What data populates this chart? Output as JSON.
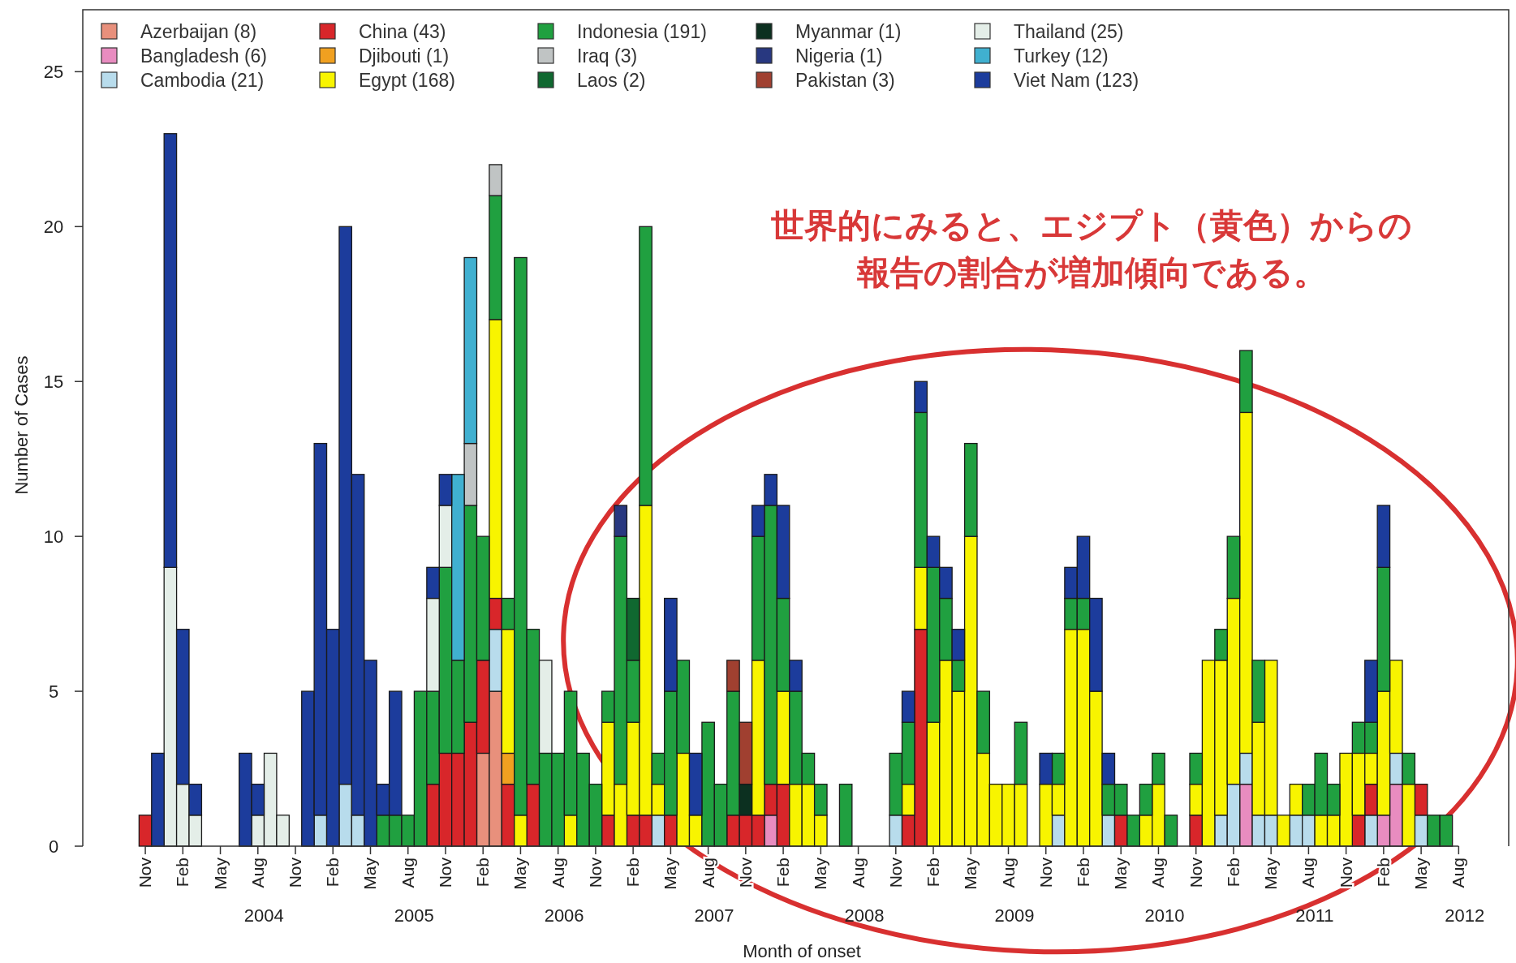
{
  "chart_data": {
    "type": "bar",
    "stacked": true,
    "xlabel": "Month of onset",
    "ylabel": "Number of Cases",
    "legend": "top",
    "xlim": [
      "2003-06",
      "2012-12"
    ],
    "ylim": [
      0,
      27
    ],
    "yticks": [
      0,
      5,
      10,
      15,
      20,
      25
    ],
    "xticks": [
      {
        "value": "2003-11",
        "label": "Nov"
      },
      {
        "value": "2004-02",
        "label": "Feb"
      },
      {
        "value": "2004-05",
        "label": "May"
      },
      {
        "value": "2004-08",
        "label": "Aug"
      },
      {
        "value": "2004-11",
        "label": "Nov"
      },
      {
        "value": "2005-02",
        "label": "Feb"
      },
      {
        "value": "2005-05",
        "label": "May"
      },
      {
        "value": "2005-08",
        "label": "Aug"
      },
      {
        "value": "2005-11",
        "label": "Nov"
      },
      {
        "value": "2006-02",
        "label": "Feb"
      },
      {
        "value": "2006-05",
        "label": "May"
      },
      {
        "value": "2006-08",
        "label": "Aug"
      },
      {
        "value": "2006-11",
        "label": "Nov"
      },
      {
        "value": "2007-02",
        "label": "Feb"
      },
      {
        "value": "2007-05",
        "label": "May"
      },
      {
        "value": "2007-08",
        "label": "Aug"
      },
      {
        "value": "2007-11",
        "label": "Nov"
      },
      {
        "value": "2008-02",
        "label": "Feb"
      },
      {
        "value": "2008-05",
        "label": "May"
      },
      {
        "value": "2008-08",
        "label": "Aug"
      },
      {
        "value": "2008-11",
        "label": "Nov"
      },
      {
        "value": "2009-02",
        "label": "Feb"
      },
      {
        "value": "2009-05",
        "label": "May"
      },
      {
        "value": "2009-08",
        "label": "Aug"
      },
      {
        "value": "2009-11",
        "label": "Nov"
      },
      {
        "value": "2010-02",
        "label": "Feb"
      },
      {
        "value": "2010-05",
        "label": "May"
      },
      {
        "value": "2010-08",
        "label": "Aug"
      },
      {
        "value": "2010-11",
        "label": "Nov"
      },
      {
        "value": "2011-02",
        "label": "Feb"
      },
      {
        "value": "2011-05",
        "label": "May"
      },
      {
        "value": "2011-08",
        "label": "Aug"
      },
      {
        "value": "2011-11",
        "label": "Nov"
      },
      {
        "value": "2012-02",
        "label": "Feb"
      },
      {
        "value": "2012-05",
        "label": "May"
      },
      {
        "value": "2012-08",
        "label": "Aug"
      }
    ],
    "x2lim": [
      "2003-06",
      "2012-12"
    ],
    "x2ticks": [
      {
        "value": "2004-08-16",
        "label": "2004"
      },
      {
        "value": "2005-08-16",
        "label": "2005"
      },
      {
        "value": "2006-08-16",
        "label": "2006"
      },
      {
        "value": "2007-08-16",
        "label": "2007"
      },
      {
        "value": "2008-08-16",
        "label": "2008"
      },
      {
        "value": "2009-08-16",
        "label": "2009"
      },
      {
        "value": "2010-08-16",
        "label": "2010"
      },
      {
        "value": "2011-08-16",
        "label": "2011"
      },
      {
        "value": "2012-08-16",
        "label": "2012"
      }
    ],
    "annotations": [
      "世界的にみると、エジプト（黄色）からの報告の割合が増加傾向である。"
    ],
    "x": [
      "2003-11",
      "2003-12",
      "2004-01",
      "2004-02",
      "2004-03",
      "2004-04",
      "2004-05",
      "2004-06",
      "2004-07",
      "2004-08",
      "2004-09",
      "2004-10",
      "2004-11",
      "2004-12",
      "2005-01",
      "2005-02",
      "2005-03",
      "2005-04",
      "2005-05",
      "2005-06",
      "2005-07",
      "2005-08",
      "2005-09",
      "2005-10",
      "2005-11",
      "2005-12",
      "2006-01",
      "2006-02",
      "2006-03",
      "2006-04",
      "2006-05",
      "2006-06",
      "2006-07",
      "2006-08",
      "2006-09",
      "2006-10",
      "2006-11",
      "2006-12",
      "2007-01",
      "2007-02",
      "2007-03",
      "2007-04",
      "2007-05",
      "2007-06",
      "2007-07",
      "2007-08",
      "2007-09",
      "2007-10",
      "2007-11",
      "2007-12",
      "2008-01",
      "2008-02",
      "2008-03",
      "2008-04",
      "2008-05",
      "2008-06",
      "2008-07",
      "2008-08",
      "2008-09",
      "2008-10",
      "2008-11",
      "2008-12",
      "2009-01",
      "2009-02",
      "2009-03",
      "2009-04",
      "2009-05",
      "2009-06",
      "2009-07",
      "2009-08",
      "2009-09",
      "2009-10",
      "2009-11",
      "2009-12",
      "2010-01",
      "2010-02",
      "2010-03",
      "2010-04",
      "2010-05",
      "2010-06",
      "2010-07",
      "2010-08",
      "2010-09",
      "2010-10",
      "2010-11",
      "2010-12",
      "2011-01",
      "2011-02",
      "2011-03",
      "2011-04",
      "2011-05",
      "2011-06",
      "2011-07",
      "2011-08",
      "2011-09",
      "2011-10",
      "2011-11",
      "2011-12",
      "2012-01",
      "2012-02",
      "2012-03",
      "2012-04",
      "2012-05",
      "2012-06",
      "2012-07"
    ],
    "series": [
      {
        "name": "Azerbaijan (8)",
        "color": "#e8907c",
        "values": [
          0,
          0,
          0,
          0,
          0,
          0,
          0,
          0,
          0,
          0,
          0,
          0,
          0,
          0,
          0,
          0,
          0,
          0,
          0,
          0,
          0,
          0,
          0,
          0,
          0,
          0,
          0,
          3,
          5,
          0,
          0,
          0,
          0,
          0,
          0,
          0,
          0,
          0,
          0,
          0,
          0,
          0,
          0,
          0,
          0,
          0,
          0,
          0,
          0,
          0,
          0,
          0,
          0,
          0,
          0,
          0,
          0,
          0,
          0,
          0,
          0,
          0,
          0,
          0,
          0,
          0,
          0,
          0,
          0,
          0,
          0,
          0,
          0,
          0,
          0,
          0,
          0,
          0,
          0,
          0,
          0,
          0,
          0,
          0,
          0,
          0,
          0,
          0,
          0,
          0,
          0,
          0,
          0,
          0,
          0,
          0,
          0,
          0,
          0,
          0,
          0,
          0,
          0,
          0,
          0
        ]
      },
      {
        "name": "Bangladesh (6)",
        "color": "#e88cc0",
        "values": [
          0,
          0,
          0,
          0,
          0,
          0,
          0,
          0,
          0,
          0,
          0,
          0,
          0,
          0,
          0,
          0,
          0,
          0,
          0,
          0,
          0,
          0,
          0,
          0,
          0,
          0,
          0,
          0,
          0,
          0,
          0,
          0,
          0,
          0,
          0,
          0,
          0,
          0,
          0,
          0,
          0,
          0,
          0,
          0,
          0,
          0,
          0,
          0,
          0,
          0,
          1,
          0,
          0,
          0,
          0,
          0,
          0,
          0,
          0,
          0,
          0,
          0,
          0,
          0,
          0,
          0,
          0,
          0,
          0,
          0,
          0,
          0,
          0,
          0,
          0,
          0,
          0,
          0,
          0,
          0,
          0,
          0,
          0,
          0,
          0,
          0,
          0,
          0,
          2,
          0,
          0,
          0,
          0,
          0,
          0,
          0,
          0,
          0,
          0,
          1,
          2,
          0,
          0,
          0,
          0
        ]
      },
      {
        "name": "Cambodia (21)",
        "color": "#b8dcec",
        "values": [
          0,
          0,
          0,
          0,
          0,
          0,
          0,
          0,
          0,
          0,
          0,
          0,
          0,
          0,
          1,
          0,
          2,
          1,
          0,
          0,
          0,
          0,
          0,
          0,
          0,
          0,
          0,
          0,
          2,
          0,
          0,
          0,
          0,
          0,
          0,
          0,
          0,
          0,
          0,
          0,
          0,
          1,
          0,
          0,
          0,
          0,
          0,
          0,
          0,
          0,
          0,
          0,
          0,
          0,
          0,
          0,
          0,
          0,
          0,
          0,
          1,
          0,
          0,
          0,
          0,
          0,
          0,
          0,
          0,
          0,
          0,
          0,
          0,
          1,
          0,
          0,
          0,
          1,
          0,
          0,
          0,
          0,
          0,
          0,
          0,
          0,
          1,
          2,
          1,
          1,
          1,
          0,
          1,
          1,
          0,
          0,
          0,
          0,
          1,
          0,
          1,
          0,
          1,
          0,
          0
        ]
      },
      {
        "name": "China (43)",
        "color": "#d8262a",
        "values": [
          1,
          0,
          0,
          0,
          0,
          0,
          0,
          0,
          0,
          0,
          0,
          0,
          0,
          0,
          0,
          0,
          0,
          0,
          0,
          0,
          0,
          0,
          0,
          2,
          3,
          3,
          4,
          3,
          1,
          2,
          0,
          2,
          0,
          0,
          0,
          0,
          0,
          1,
          0,
          1,
          1,
          0,
          1,
          0,
          0,
          0,
          0,
          1,
          1,
          1,
          1,
          2,
          0,
          0,
          0,
          0,
          0,
          0,
          0,
          0,
          0,
          1,
          7,
          0,
          0,
          0,
          0,
          0,
          0,
          0,
          0,
          0,
          0,
          0,
          0,
          0,
          0,
          0,
          1,
          0,
          0,
          0,
          0,
          0,
          1,
          0,
          0,
          0,
          0,
          0,
          0,
          0,
          0,
          0,
          0,
          0,
          0,
          1,
          1,
          0,
          0,
          0,
          1,
          0,
          0
        ]
      },
      {
        "name": "Djibouti (1)",
        "color": "#f0a020",
        "values": [
          0,
          0,
          0,
          0,
          0,
          0,
          0,
          0,
          0,
          0,
          0,
          0,
          0,
          0,
          0,
          0,
          0,
          0,
          0,
          0,
          0,
          0,
          0,
          0,
          0,
          0,
          0,
          0,
          0,
          1,
          0,
          0,
          0,
          0,
          0,
          0,
          0,
          0,
          0,
          0,
          0,
          0,
          0,
          0,
          0,
          0,
          0,
          0,
          0,
          0,
          0,
          0,
          0,
          0,
          0,
          0,
          0,
          0,
          0,
          0,
          0,
          0,
          0,
          0,
          0,
          0,
          0,
          0,
          0,
          0,
          0,
          0,
          0,
          0,
          0,
          0,
          0,
          0,
          0,
          0,
          0,
          0,
          0,
          0,
          0,
          0,
          0,
          0,
          0,
          0,
          0,
          0,
          0,
          0,
          0,
          0,
          0,
          0,
          0,
          0,
          0,
          0,
          0,
          0,
          0
        ]
      },
      {
        "name": "Egypt (168)",
        "color": "#f8f400",
        "values": [
          0,
          0,
          0,
          0,
          0,
          0,
          0,
          0,
          0,
          0,
          0,
          0,
          0,
          0,
          0,
          0,
          0,
          0,
          0,
          0,
          0,
          0,
          0,
          0,
          0,
          0,
          0,
          0,
          9,
          4,
          1,
          0,
          0,
          0,
          1,
          0,
          0,
          3,
          2,
          3,
          10,
          1,
          0,
          3,
          1,
          0,
          0,
          0,
          0,
          5,
          0,
          3,
          2,
          2,
          1,
          0,
          0,
          0,
          0,
          0,
          0,
          1,
          2,
          4,
          6,
          5,
          10,
          3,
          2,
          2,
          2,
          0,
          2,
          1,
          7,
          7,
          5,
          0,
          0,
          0,
          1,
          2,
          0,
          0,
          1,
          6,
          5,
          6,
          11,
          3,
          5,
          1,
          1,
          0,
          1,
          1,
          3,
          2,
          1,
          4,
          3,
          2,
          0,
          0,
          0
        ]
      },
      {
        "name": "Indonesia (191)",
        "color": "#20a040",
        "values": [
          0,
          0,
          0,
          0,
          0,
          0,
          0,
          0,
          0,
          0,
          0,
          0,
          0,
          0,
          0,
          0,
          0,
          0,
          0,
          1,
          1,
          1,
          5,
          3,
          6,
          3,
          7,
          4,
          4,
          1,
          18,
          5,
          3,
          3,
          4,
          3,
          2,
          1,
          8,
          2,
          9,
          1,
          4,
          3,
          0,
          4,
          2,
          4,
          0,
          4,
          9,
          3,
          3,
          1,
          1,
          0,
          2,
          0,
          0,
          0,
          2,
          2,
          5,
          5,
          2,
          1,
          3,
          2,
          0,
          0,
          2,
          0,
          0,
          1,
          1,
          1,
          0,
          1,
          1,
          1,
          1,
          1,
          1,
          0,
          1,
          0,
          1,
          2,
          2,
          2,
          0,
          0,
          0,
          1,
          2,
          1,
          0,
          1,
          1,
          4,
          0,
          1,
          0,
          1,
          1
        ]
      },
      {
        "name": "Iraq (3)",
        "color": "#c0c4c4",
        "values": [
          0,
          0,
          0,
          0,
          0,
          0,
          0,
          0,
          0,
          0,
          0,
          0,
          0,
          0,
          0,
          0,
          0,
          0,
          0,
          0,
          0,
          0,
          0,
          0,
          0,
          0,
          2,
          0,
          1,
          0,
          0,
          0,
          0,
          0,
          0,
          0,
          0,
          0,
          0,
          0,
          0,
          0,
          0,
          0,
          0,
          0,
          0,
          0,
          0,
          0,
          0,
          0,
          0,
          0,
          0,
          0,
          0,
          0,
          0,
          0,
          0,
          0,
          0,
          0,
          0,
          0,
          0,
          0,
          0,
          0,
          0,
          0,
          0,
          0,
          0,
          0,
          0,
          0,
          0,
          0,
          0,
          0,
          0,
          0,
          0,
          0,
          0,
          0,
          0,
          0,
          0,
          0,
          0,
          0,
          0,
          0,
          0,
          0,
          0,
          0,
          0,
          0,
          0,
          0,
          0
        ]
      },
      {
        "name": "Laos (2)",
        "color": "#106830",
        "values": [
          0,
          0,
          0,
          0,
          0,
          0,
          0,
          0,
          0,
          0,
          0,
          0,
          0,
          0,
          0,
          0,
          0,
          0,
          0,
          0,
          0,
          0,
          0,
          0,
          0,
          0,
          0,
          0,
          0,
          0,
          0,
          0,
          0,
          0,
          0,
          0,
          0,
          0,
          0,
          2,
          0,
          0,
          0,
          0,
          0,
          0,
          0,
          0,
          0,
          0,
          0,
          0,
          0,
          0,
          0,
          0,
          0,
          0,
          0,
          0,
          0,
          0,
          0,
          0,
          0,
          0,
          0,
          0,
          0,
          0,
          0,
          0,
          0,
          0,
          0,
          0,
          0,
          0,
          0,
          0,
          0,
          0,
          0,
          0,
          0,
          0,
          0,
          0,
          0,
          0,
          0,
          0,
          0,
          0,
          0,
          0,
          0,
          0,
          0,
          0,
          0,
          0,
          0,
          0,
          0
        ]
      },
      {
        "name": "Myanmar (1)",
        "color": "#0c3020",
        "values": [
          0,
          0,
          0,
          0,
          0,
          0,
          0,
          0,
          0,
          0,
          0,
          0,
          0,
          0,
          0,
          0,
          0,
          0,
          0,
          0,
          0,
          0,
          0,
          0,
          0,
          0,
          0,
          0,
          0,
          0,
          0,
          0,
          0,
          0,
          0,
          0,
          0,
          0,
          0,
          0,
          0,
          0,
          0,
          0,
          0,
          0,
          0,
          0,
          1,
          0,
          0,
          0,
          0,
          0,
          0,
          0,
          0,
          0,
          0,
          0,
          0,
          0,
          0,
          0,
          0,
          0,
          0,
          0,
          0,
          0,
          0,
          0,
          0,
          0,
          0,
          0,
          0,
          0,
          0,
          0,
          0,
          0,
          0,
          0,
          0,
          0,
          0,
          0,
          0,
          0,
          0,
          0,
          0,
          0,
          0,
          0,
          0,
          0,
          0,
          0,
          0,
          0,
          0,
          0,
          0
        ]
      },
      {
        "name": "Nigeria (1)",
        "color": "#283880",
        "values": [
          0,
          0,
          0,
          0,
          0,
          0,
          0,
          0,
          0,
          0,
          0,
          0,
          0,
          0,
          0,
          0,
          0,
          0,
          0,
          0,
          0,
          0,
          0,
          0,
          0,
          0,
          0,
          0,
          0,
          0,
          0,
          0,
          0,
          0,
          0,
          0,
          0,
          0,
          1,
          0,
          0,
          0,
          0,
          0,
          0,
          0,
          0,
          0,
          0,
          0,
          0,
          0,
          0,
          0,
          0,
          0,
          0,
          0,
          0,
          0,
          0,
          0,
          0,
          0,
          0,
          0,
          0,
          0,
          0,
          0,
          0,
          0,
          0,
          0,
          0,
          0,
          0,
          0,
          0,
          0,
          0,
          0,
          0,
          0,
          0,
          0,
          0,
          0,
          0,
          0,
          0,
          0,
          0,
          0,
          0,
          0,
          0,
          0,
          0,
          0,
          0,
          0,
          0,
          0,
          0
        ]
      },
      {
        "name": "Pakistan (3)",
        "color": "#a04030",
        "values": [
          0,
          0,
          0,
          0,
          0,
          0,
          0,
          0,
          0,
          0,
          0,
          0,
          0,
          0,
          0,
          0,
          0,
          0,
          0,
          0,
          0,
          0,
          0,
          0,
          0,
          0,
          0,
          0,
          0,
          0,
          0,
          0,
          0,
          0,
          0,
          0,
          0,
          0,
          0,
          0,
          0,
          0,
          0,
          0,
          0,
          0,
          0,
          1,
          2,
          0,
          0,
          0,
          0,
          0,
          0,
          0,
          0,
          0,
          0,
          0,
          0,
          0,
          0,
          0,
          0,
          0,
          0,
          0,
          0,
          0,
          0,
          0,
          0,
          0,
          0,
          0,
          0,
          0,
          0,
          0,
          0,
          0,
          0,
          0,
          0,
          0,
          0,
          0,
          0,
          0,
          0,
          0,
          0,
          0,
          0,
          0,
          0,
          0,
          0,
          0,
          0,
          0,
          0,
          0,
          0
        ]
      },
      {
        "name": "Thailand (25)",
        "color": "#e4eee8",
        "values": [
          0,
          0,
          9,
          2,
          1,
          0,
          0,
          0,
          0,
          1,
          3,
          1,
          0,
          0,
          0,
          0,
          0,
          0,
          0,
          0,
          0,
          0,
          0,
          3,
          2,
          0,
          0,
          0,
          0,
          0,
          0,
          0,
          3,
          0,
          0,
          0,
          0,
          0,
          0,
          0,
          0,
          0,
          0,
          0,
          0,
          0,
          0,
          0,
          0,
          0,
          0,
          0,
          0,
          0,
          0,
          0,
          0,
          0,
          0,
          0,
          0,
          0,
          0,
          0,
          0,
          0,
          0,
          0,
          0,
          0,
          0,
          0,
          0,
          0,
          0,
          0,
          0,
          0,
          0,
          0,
          0,
          0,
          0,
          0,
          0,
          0,
          0,
          0,
          0,
          0,
          0,
          0,
          0,
          0,
          0,
          0,
          0,
          0,
          0,
          0,
          0,
          0,
          0,
          0,
          0
        ]
      },
      {
        "name": "Turkey (12)",
        "color": "#40b0d0",
        "values": [
          0,
          0,
          0,
          0,
          0,
          0,
          0,
          0,
          0,
          0,
          0,
          0,
          0,
          0,
          0,
          0,
          0,
          0,
          0,
          0,
          0,
          0,
          0,
          0,
          0,
          6,
          6,
          0,
          0,
          0,
          0,
          0,
          0,
          0,
          0,
          0,
          0,
          0,
          0,
          0,
          0,
          0,
          0,
          0,
          0,
          0,
          0,
          0,
          0,
          0,
          0,
          0,
          0,
          0,
          0,
          0,
          0,
          0,
          0,
          0,
          0,
          0,
          0,
          0,
          0,
          0,
          0,
          0,
          0,
          0,
          0,
          0,
          0,
          0,
          0,
          0,
          0,
          0,
          0,
          0,
          0,
          0,
          0,
          0,
          0,
          0,
          0,
          0,
          0,
          0,
          0,
          0,
          0,
          0,
          0,
          0,
          0,
          0,
          0,
          0,
          0,
          0,
          0,
          0,
          0
        ]
      },
      {
        "name": "Viet Nam (123)",
        "color": "#1c3c9c",
        "values": [
          0,
          3,
          14,
          5,
          1,
          0,
          0,
          0,
          3,
          1,
          0,
          0,
          0,
          5,
          12,
          7,
          18,
          11,
          6,
          1,
          4,
          0,
          0,
          1,
          1,
          0,
          0,
          0,
          0,
          0,
          0,
          0,
          0,
          0,
          0,
          0,
          0,
          0,
          0,
          0,
          0,
          0,
          3,
          0,
          2,
          0,
          0,
          0,
          0,
          1,
          1,
          3,
          1,
          0,
          0,
          0,
          0,
          0,
          0,
          0,
          0,
          1,
          1,
          1,
          1,
          1,
          0,
          0,
          0,
          0,
          0,
          0,
          1,
          0,
          1,
          2,
          3,
          1,
          0,
          0,
          0,
          0,
          0,
          0,
          0,
          0,
          0,
          0,
          0,
          0,
          0,
          0,
          0,
          0,
          0,
          0,
          0,
          0,
          2,
          2,
          0,
          0,
          0,
          0,
          0
        ]
      }
    ]
  }
}
